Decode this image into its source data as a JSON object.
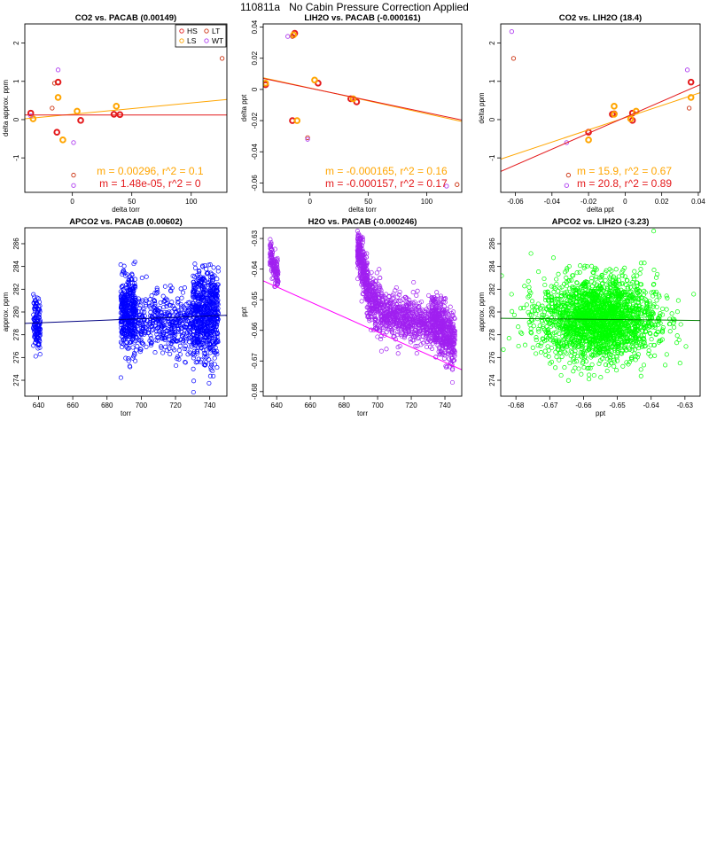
{
  "page": {
    "title": "110811a   No Cabin Pressure Correction Applied"
  },
  "colors": {
    "HS": "#e41a1c",
    "LS": "#ffa500",
    "LT": "#cc3311",
    "WT": "#b040f0"
  },
  "chart_data": [
    {
      "id": "co2-vs-pacab",
      "type": "scatter",
      "title": "CO2 vs. PACAB (0.00149)",
      "xlabel": "delta torr",
      "ylabel": "delta approx. ppm",
      "xlim": [
        -40,
        130
      ],
      "ylim": [
        -1.9,
        2.5
      ],
      "xticks": [
        0,
        50,
        100
      ],
      "yticks": [
        -1,
        0,
        1,
        2
      ],
      "legend": {
        "position": "top-right",
        "entries": [
          {
            "label": "HS",
            "color": "#e41a1c"
          },
          {
            "label": "LT",
            "color": "#cc3311"
          },
          {
            "label": "LS",
            "color": "#ffa500"
          },
          {
            "label": "WT",
            "color": "#b040f0"
          }
        ]
      },
      "series": [
        {
          "name": "HS",
          "color": "#e41a1c",
          "thick": true,
          "points": [
            [
              -35,
              0.17
            ],
            [
              -12,
              0.98
            ],
            [
              -13,
              -0.33
            ],
            [
              7,
              -0.02
            ],
            [
              35,
              0.14
            ],
            [
              40,
              0.13
            ]
          ]
        },
        {
          "name": "LS",
          "color": "#ffa500",
          "thick": true,
          "points": [
            [
              -33,
              0.02
            ],
            [
              -12,
              0.58
            ],
            [
              -8,
              -0.53
            ],
            [
              4,
              0.22
            ],
            [
              37,
              0.35
            ]
          ]
        },
        {
          "name": "LT",
          "color": "#cc3311",
          "thick": false,
          "points": [
            [
              -17,
              0.3
            ],
            [
              -15,
              0.95
            ],
            [
              1,
              -1.45
            ],
            [
              126,
              1.6
            ]
          ]
        },
        {
          "name": "WT",
          "color": "#b040f0",
          "thick": false,
          "points": [
            [
              -12,
              1.3
            ],
            [
              1,
              -0.6
            ],
            [
              1,
              -1.72
            ],
            [
              -35,
              0.1
            ]
          ]
        }
      ],
      "fits": [
        {
          "color": "#ffa500",
          "slope": 0.00296,
          "intercept": 0.14,
          "label": "m = 0.00296, r^2 = 0.1"
        },
        {
          "color": "#e41a1c",
          "slope": 1.48e-05,
          "intercept": 0.12,
          "label": "m = 1.48e-05, r^2 = 0"
        }
      ]
    },
    {
      "id": "lih2o-vs-pacab",
      "type": "scatter",
      "title": "LIH2O vs. PACAB (-0.000161)",
      "xlabel": "delta torr",
      "ylabel": "delta ppt",
      "xlim": [
        -40,
        130
      ],
      "ylim": [
        -0.066,
        0.042
      ],
      "xticks": [
        0,
        50,
        100
      ],
      "yticks": [
        -0.06,
        -0.04,
        -0.02,
        0.0,
        0.02,
        0.04
      ],
      "series": [
        {
          "name": "HS",
          "color": "#e41a1c",
          "thick": true,
          "points": [
            [
              -38,
              0.003
            ],
            [
              -13,
              0.036
            ],
            [
              -15,
              -0.02
            ],
            [
              7,
              0.004
            ],
            [
              35,
              -0.006
            ],
            [
              40,
              -0.008
            ]
          ]
        },
        {
          "name": "LS",
          "color": "#ffa500",
          "thick": true,
          "points": [
            [
              -38,
              0.004
            ],
            [
              -14,
              0.035
            ],
            [
              -11,
              -0.02
            ],
            [
              4,
              0.006
            ],
            [
              37,
              -0.006
            ]
          ]
        },
        {
          "name": "LT",
          "color": "#cc3311",
          "thick": false,
          "points": [
            [
              -15,
              0.034
            ],
            [
              -2,
              -0.031
            ],
            [
              126,
              -0.061
            ]
          ]
        },
        {
          "name": "WT",
          "color": "#b040f0",
          "thick": false,
          "points": [
            [
              -19,
              0.034
            ],
            [
              -2,
              -0.032
            ],
            [
              117,
              -0.062
            ]
          ]
        }
      ],
      "fits": [
        {
          "color": "#ffa500",
          "slope": -0.000165,
          "intercept": 0.0009,
          "label": "m = -0.000165, r^2 = 0.16"
        },
        {
          "color": "#e41a1c",
          "slope": -0.000157,
          "intercept": 0.0008,
          "label": "m = -0.000157, r^2 = 0.17"
        }
      ]
    },
    {
      "id": "co2-vs-lih2o",
      "type": "scatter",
      "title": "CO2 vs. LIH2O (18.4)",
      "xlabel": "delta ppt",
      "ylabel": "delta ppm",
      "xlim": [
        -0.068,
        0.041
      ],
      "ylim": [
        -1.9,
        2.5
      ],
      "xticks": [
        -0.06,
        -0.04,
        -0.02,
        0.0,
        0.02,
        0.04
      ],
      "yticks": [
        -1,
        0,
        1,
        2
      ],
      "series": [
        {
          "name": "HS",
          "color": "#e41a1c",
          "thick": true,
          "points": [
            [
              0.036,
              0.98
            ],
            [
              -0.02,
              -0.33
            ],
            [
              -0.007,
              0.14
            ],
            [
              -0.006,
              0.15
            ],
            [
              0.004,
              0.17
            ],
            [
              0.004,
              -0.02
            ]
          ]
        },
        {
          "name": "LS",
          "color": "#ffa500",
          "thick": true,
          "points": [
            [
              0.036,
              0.58
            ],
            [
              -0.02,
              -0.53
            ],
            [
              -0.006,
              0.35
            ],
            [
              -0.006,
              0.14
            ],
            [
              0.006,
              0.22
            ],
            [
              0.003,
              0.02
            ]
          ]
        },
        {
          "name": "LT",
          "color": "#cc3311",
          "thick": false,
          "points": [
            [
              -0.061,
              1.6
            ],
            [
              -0.031,
              -1.45
            ],
            [
              0.035,
              0.3
            ]
          ]
        },
        {
          "name": "WT",
          "color": "#b040f0",
          "thick": false,
          "points": [
            [
              -0.062,
              2.3
            ],
            [
              -0.032,
              -0.6
            ],
            [
              -0.032,
              -1.72
            ],
            [
              0.034,
              1.3
            ]
          ]
        }
      ],
      "fits": [
        {
          "color": "#ffa500",
          "slope": 15.9,
          "intercept": 0.05,
          "label": "m = 15.9, r^2 = 0.67"
        },
        {
          "color": "#e41a1c",
          "slope": 20.8,
          "intercept": 0.06,
          "label": "m = 20.8, r^2 = 0.89"
        }
      ]
    },
    {
      "id": "apco2-vs-pacab",
      "type": "scatter",
      "title": "APCO2 vs. PACAB (0.00602)",
      "xlabel": "torr",
      "ylabel": "approx. ppm",
      "xlim": [
        632,
        750
      ],
      "ylim": [
        272.6,
        287.4
      ],
      "xticks": [
        640,
        660,
        680,
        700,
        720,
        740
      ],
      "yticks": [
        274,
        276,
        278,
        280,
        282,
        284,
        286
      ],
      "color": "#0000ff",
      "fit": {
        "slope": 0.00602,
        "intercept": 279.35,
        "x0": 690
      },
      "clusters": [
        {
          "x": [
            637,
            641
          ],
          "center": 279.0,
          "spread": 1.2,
          "n": 130
        },
        {
          "x": [
            688,
            697
          ],
          "center": 279.8,
          "spread": 1.6,
          "n": 420
        },
        {
          "x": [
            697,
            730
          ],
          "center": 279.0,
          "spread": 1.3,
          "n": 420
        },
        {
          "x": [
            730,
            745
          ],
          "center": 279.6,
          "spread": 2.0,
          "n": 650
        }
      ]
    },
    {
      "id": "h2o-vs-pacab",
      "type": "scatter",
      "title": "H2O vs. PACAB (-0.000246)",
      "xlabel": "torr",
      "ylabel": "ppt",
      "xlim": [
        632,
        750
      ],
      "ylim": [
        -0.6815,
        -0.6265
      ],
      "xticks": [
        640,
        660,
        680,
        700,
        720,
        740
      ],
      "yticks": [
        -0.68,
        -0.67,
        -0.66,
        -0.65,
        -0.64,
        -0.63
      ],
      "color": "#a020f0",
      "fit": {
        "slope": -0.000246,
        "intercept": -0.6581,
        "x0": 690,
        "color": "#ff00ff"
      },
      "clusters": [
        {
          "x": [
            636,
            641
          ],
          "c0": -0.6345,
          "c1": -0.644,
          "spread": 0.0025,
          "n": 130
        },
        {
          "x": [
            688,
            694
          ],
          "c0": -0.633,
          "c1": -0.646,
          "spread": 0.004,
          "n": 300
        },
        {
          "x": [
            694,
            706
          ],
          "c0": -0.648,
          "c1": -0.656,
          "spread": 0.004,
          "n": 300
        },
        {
          "x": [
            706,
            732
          ],
          "c0": -0.655,
          "c1": -0.658,
          "spread": 0.0035,
          "n": 500
        },
        {
          "x": [
            732,
            746
          ],
          "c0": -0.656,
          "c1": -0.664,
          "spread": 0.0045,
          "n": 520
        }
      ]
    },
    {
      "id": "apco2-vs-lih2o",
      "type": "scatter",
      "title": "APCO2 vs. LIH2O (-3.23)",
      "xlabel": "ppt",
      "ylabel": "approx. ppm",
      "xlim": [
        -0.6845,
        -0.6255
      ],
      "ylim": [
        272.6,
        287.4
      ],
      "xticks": [
        -0.68,
        -0.67,
        -0.66,
        -0.65,
        -0.64,
        -0.63
      ],
      "yticks": [
        274,
        276,
        278,
        280,
        282,
        284,
        286
      ],
      "color": "#00ff00",
      "fit": {
        "slope": -3.23,
        "intercept": 279.35,
        "x0": -0.655,
        "color": "#008000"
      },
      "cloud": {
        "cx": -0.6555,
        "sx": 0.0085,
        "cy": 279.4,
        "sy": 1.8,
        "n": 2200
      }
    }
  ]
}
